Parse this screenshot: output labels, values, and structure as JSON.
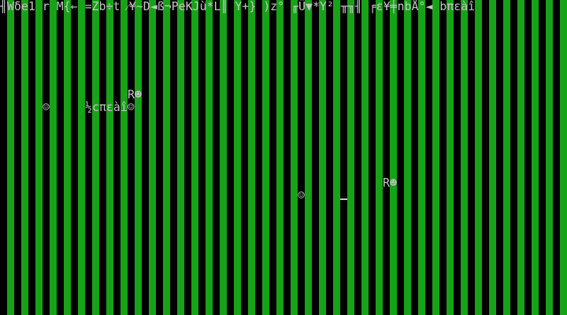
{
  "screen": {
    "mode": "text 80x25",
    "stripe_colors": [
      "#000000",
      "#17a317"
    ],
    "text_color": "#c4c4c4",
    "lines": [
      {
        "row": 0,
        "col": 0,
        "text": "╢Wδe1 r M{← =Zb÷t ⁄¥~D◄ß¬PeKJù*L║ Y+} )z° ╓Ü▼*Y² ╥╖╢ ╒ε¥╪nbÅ°◄ bπεàî"
      },
      {
        "row": 7,
        "col": 18,
        "text": "R☻"
      },
      {
        "row": 8,
        "col": 6,
        "text": "☺"
      },
      {
        "row": 8,
        "col": 12,
        "text": "½cπεàî☺"
      },
      {
        "row": 14,
        "col": 54,
        "text": "R☻"
      },
      {
        "row": 15,
        "col": 42,
        "text": "☺"
      }
    ]
  }
}
